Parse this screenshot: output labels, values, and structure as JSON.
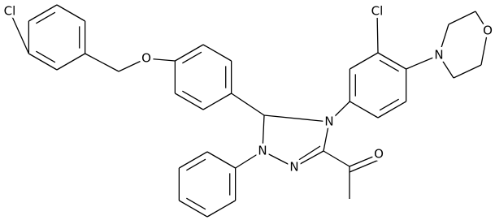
{
  "molecule": {
    "atoms": [
      {
        "label": "Cl"
      },
      {
        "label": "O"
      },
      {
        "label": "N"
      },
      {
        "label": "N"
      },
      {
        "label": "N"
      },
      {
        "label": "O"
      },
      {
        "label": "Cl"
      },
      {
        "label": "N"
      },
      {
        "label": "O"
      }
    ]
  }
}
